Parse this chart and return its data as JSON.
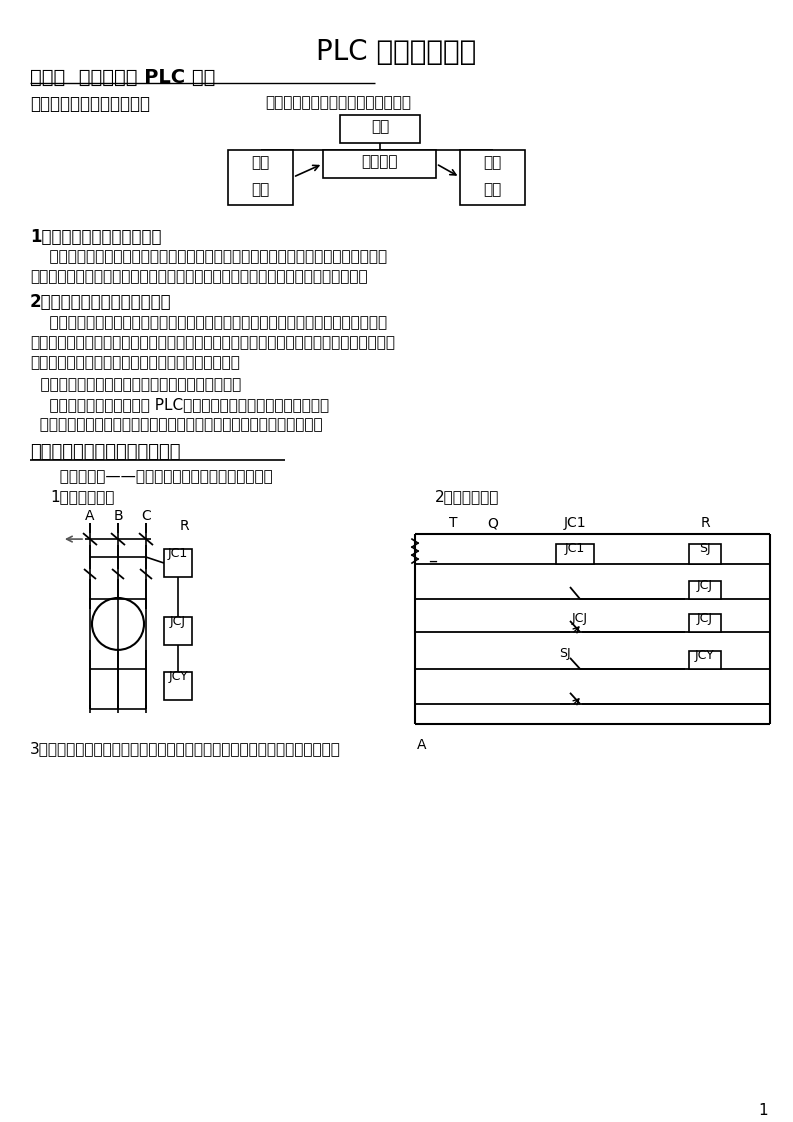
{
  "title": "PLC 初级培训教材",
  "ch1_title": "第一章  电气系统及 PLC 简介",
  "section1": "一、设备电气系统结构简介",
  "section1_note": "设备电气系统一般由以下几部分组成",
  "block_power": "电源",
  "block_input": "输入",
  "block_input_sub": "元件",
  "block_ctrl": "控制中心",
  "block_exec": "执行",
  "block_exec_sub": "机构",
  "item1_title": "1、执行机构：执行工作命令",
  "item1_body1": "    陶瓷行业中常见的执行机构有：电动机（普通、带刹车、带离合）、电磁阀（控制油",
  "item1_body2": "路或气路的通闸完成机械动作）、伺服马达（控制调节油路、气路的开度大小）等。",
  "item2_title": "2、输入元件：从外部取入信息",
  "item2_body1": "    陶瓷行业中常见的输入元件有：各类主令电器（开头、按扭）、行程开关（位置）、",
  "item2_body2": "近接开关（反映铁件运动位置）、光电开关（运动物体的位置）、编码器（反映物体运动距",
  "item2_body3": "离）、热电偶（温度）、粉位感应器粉料位置）等。",
  "ctrl_title": "  控制中心：记忆程序或信息、执行逻辑运算及判断",
  "ctrl_body": "    常见控制中心部件有各类 PLC、继电器、接触器、热继电器、等。",
  "power_body": "  电源向输入元件、控制中心提供控制电源；向执行机构提供电气动力。",
  "section2": "二、简单的单台电动机电气系统",
  "example_title": "  例：一台星——角启动的鼠笼式电动机的电气系统",
  "diagram1_label": "1、一次线路图",
  "diagram2_label": "2、二次线路图",
  "item3_text": "3、上图看出，二次回路图中为实现延时控制，要使用一个时间继电器，而在",
  "page_num": "1",
  "bg_color": "#ffffff",
  "text_color": "#000000",
  "line_color": "#000000"
}
